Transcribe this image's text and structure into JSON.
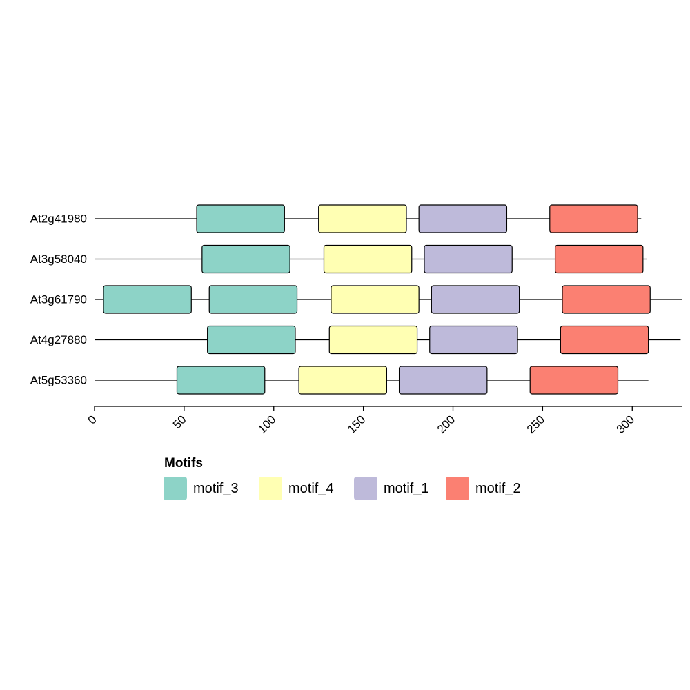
{
  "chart_data": {
    "type": "motif-diagram",
    "x_ticks": [
      0,
      50,
      100,
      150,
      200,
      250,
      300
    ],
    "xlim": [
      0,
      328
    ],
    "legend": {
      "title": "Motifs",
      "entries": [
        {
          "name": "motif_3",
          "color": "#8dd3c7"
        },
        {
          "name": "motif_4",
          "color": "#ffffb3"
        },
        {
          "name": "motif_1",
          "color": "#bebada"
        },
        {
          "name": "motif_2",
          "color": "#fb8072"
        }
      ]
    },
    "genes": [
      {
        "name": "At2g41980",
        "length": 305,
        "motifs": [
          {
            "motif": "motif_3",
            "start": 57,
            "end": 106
          },
          {
            "motif": "motif_4",
            "start": 125,
            "end": 174
          },
          {
            "motif": "motif_1",
            "start": 181,
            "end": 230
          },
          {
            "motif": "motif_2",
            "start": 254,
            "end": 303
          }
        ]
      },
      {
        "name": "At3g58040",
        "length": 308,
        "motifs": [
          {
            "motif": "motif_3",
            "start": 60,
            "end": 109
          },
          {
            "motif": "motif_4",
            "start": 128,
            "end": 177
          },
          {
            "motif": "motif_1",
            "start": 184,
            "end": 233
          },
          {
            "motif": "motif_2",
            "start": 257,
            "end": 306
          }
        ]
      },
      {
        "name": "At3g61790",
        "length": 328,
        "motifs": [
          {
            "motif": "motif_3",
            "start": 5,
            "end": 54
          },
          {
            "motif": "motif_3",
            "start": 64,
            "end": 113
          },
          {
            "motif": "motif_4",
            "start": 132,
            "end": 181
          },
          {
            "motif": "motif_1",
            "start": 188,
            "end": 237
          },
          {
            "motif": "motif_2",
            "start": 261,
            "end": 310
          }
        ]
      },
      {
        "name": "At4g27880",
        "length": 327,
        "motifs": [
          {
            "motif": "motif_3",
            "start": 63,
            "end": 112
          },
          {
            "motif": "motif_4",
            "start": 131,
            "end": 180
          },
          {
            "motif": "motif_1",
            "start": 187,
            "end": 236
          },
          {
            "motif": "motif_2",
            "start": 260,
            "end": 309
          }
        ]
      },
      {
        "name": "At5g53360",
        "length": 309,
        "motifs": [
          {
            "motif": "motif_3",
            "start": 46,
            "end": 95
          },
          {
            "motif": "motif_4",
            "start": 114,
            "end": 163
          },
          {
            "motif": "motif_1",
            "start": 170,
            "end": 219
          },
          {
            "motif": "motif_2",
            "start": 243,
            "end": 292
          }
        ]
      }
    ]
  }
}
